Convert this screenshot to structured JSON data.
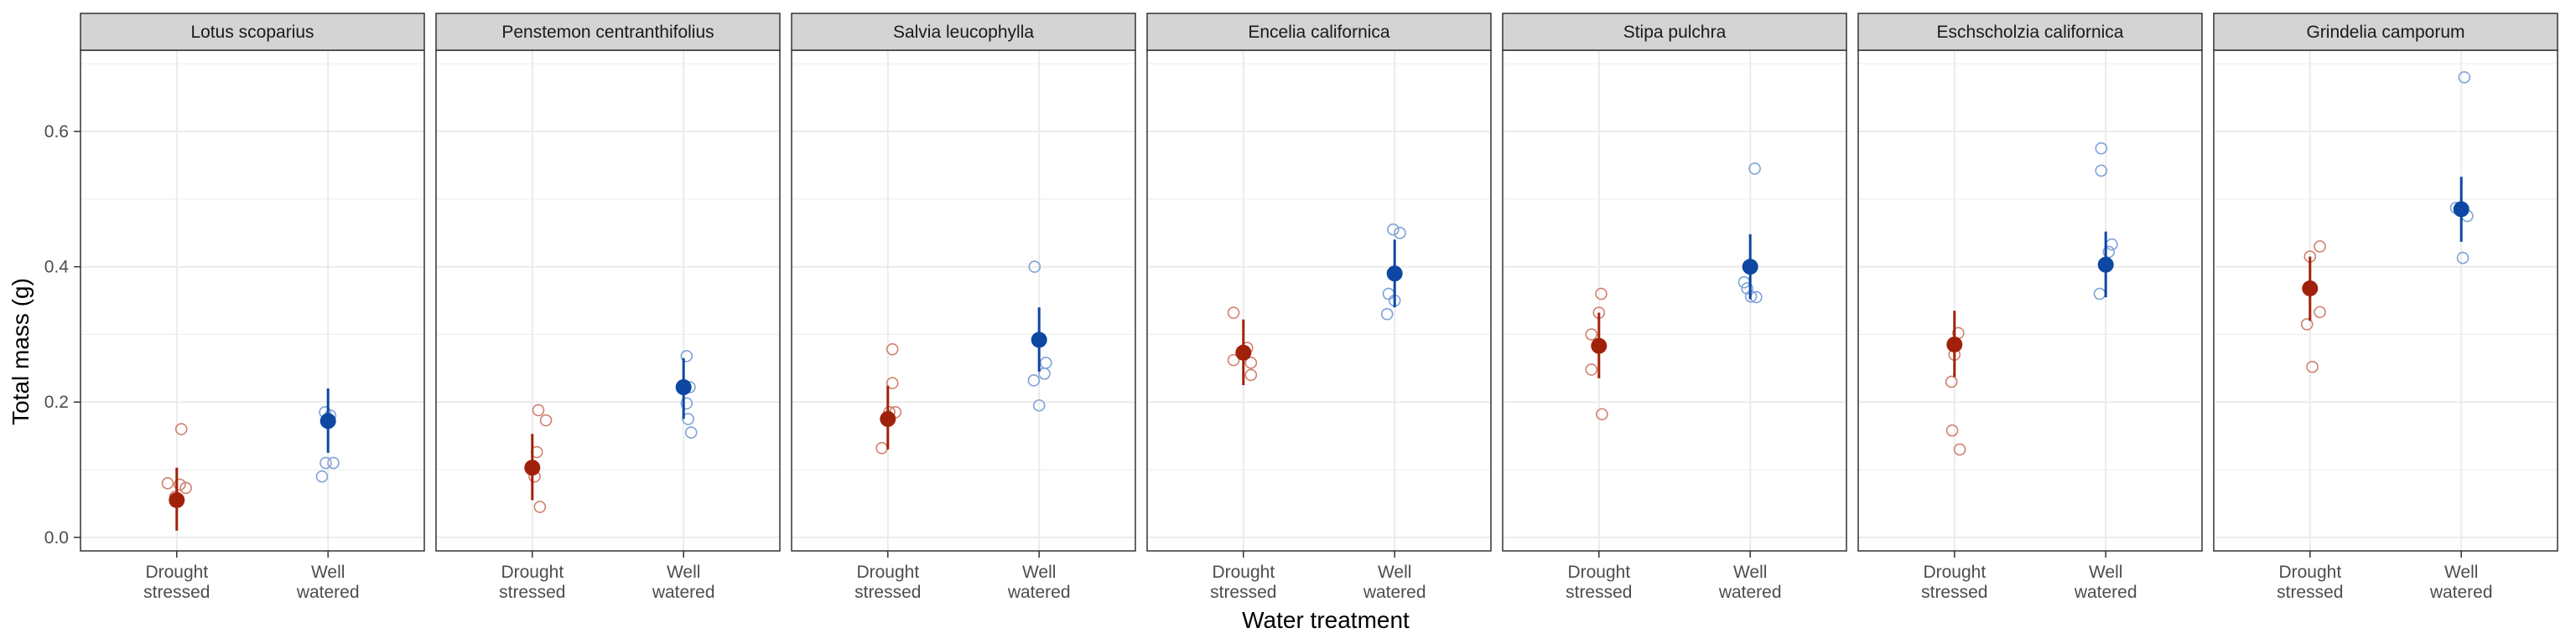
{
  "chart_data": {
    "type": "scatter",
    "xlabel": "Water treatment",
    "ylabel": "Total mass (g)",
    "ylim": [
      -0.02,
      0.72
    ],
    "yticks": [
      "0.0",
      "0.2",
      "0.4",
      "0.6"
    ],
    "ytick_values": [
      0.0,
      0.2,
      0.4,
      0.6
    ],
    "categories": [
      {
        "line1": "Drought",
        "line2": "stressed"
      },
      {
        "line1": "Well",
        "line2": "watered"
      }
    ],
    "grid": true,
    "colors": {
      "drought": "#a0210a",
      "well": "#0d47a1",
      "drought_points": "#d0806f",
      "well_points": "#7fa2d8",
      "strip_bg": "#d4d4d4",
      "grid": "#ebebeb"
    },
    "panels": [
      {
        "title": "Lotus scoparius",
        "drought": {
          "mean": 0.055,
          "low": 0.01,
          "high": 0.103,
          "points": [
            [
              -0.12,
              0.08
            ],
            [
              0.04,
              0.078
            ],
            [
              0.12,
              0.073
            ],
            [
              0.06,
              0.16
            ],
            [
              -0.02,
              0.06
            ]
          ]
        },
        "well": {
          "mean": 0.172,
          "low": 0.125,
          "high": 0.22,
          "points": [
            [
              -0.04,
              0.185
            ],
            [
              0.07,
              0.11
            ],
            [
              -0.03,
              0.11
            ],
            [
              -0.08,
              0.09
            ],
            [
              0.03,
              0.18
            ]
          ]
        }
      },
      {
        "title": "Penstemon centranthifolius",
        "drought": {
          "mean": 0.103,
          "low": 0.055,
          "high": 0.153,
          "points": [
            [
              0.08,
              0.188
            ],
            [
              0.18,
              0.173
            ],
            [
              0.06,
              0.126
            ],
            [
              0.03,
              0.09
            ],
            [
              0.1,
              0.045
            ]
          ]
        },
        "well": {
          "mean": 0.222,
          "low": 0.175,
          "high": 0.265,
          "points": [
            [
              0.04,
              0.268
            ],
            [
              0.08,
              0.222
            ],
            [
              0.04,
              0.198
            ],
            [
              0.06,
              0.175
            ],
            [
              0.1,
              0.155
            ]
          ]
        }
      },
      {
        "title": "Salvia leucophylla",
        "drought": {
          "mean": 0.175,
          "low": 0.13,
          "high": 0.224,
          "points": [
            [
              0.06,
              0.278
            ],
            [
              0.06,
              0.228
            ],
            [
              0.1,
              0.185
            ],
            [
              0.02,
              0.185
            ],
            [
              -0.08,
              0.132
            ]
          ]
        },
        "well": {
          "mean": 0.292,
          "low": 0.245,
          "high": 0.34,
          "points": [
            [
              -0.06,
              0.4
            ],
            [
              0.09,
              0.258
            ],
            [
              0.07,
              0.242
            ],
            [
              -0.07,
              0.232
            ],
            [
              0.0,
              0.195
            ]
          ]
        }
      },
      {
        "title": "Encelia californica",
        "drought": {
          "mean": 0.273,
          "low": 0.225,
          "high": 0.322,
          "points": [
            [
              -0.13,
              0.332
            ],
            [
              0.1,
              0.258
            ],
            [
              -0.13,
              0.262
            ],
            [
              0.1,
              0.24
            ],
            [
              0.05,
              0.28
            ]
          ]
        },
        "well": {
          "mean": 0.39,
          "low": 0.34,
          "high": 0.44,
          "points": [
            [
              -0.02,
              0.455
            ],
            [
              0.07,
              0.45
            ],
            [
              -0.08,
              0.36
            ],
            [
              0.0,
              0.35
            ],
            [
              -0.1,
              0.33
            ]
          ]
        }
      },
      {
        "title": "Stipa pulchra",
        "drought": {
          "mean": 0.283,
          "low": 0.235,
          "high": 0.332,
          "points": [
            [
              0.03,
              0.36
            ],
            [
              0.0,
              0.332
            ],
            [
              -0.1,
              0.3
            ],
            [
              -0.1,
              0.248
            ],
            [
              0.04,
              0.182
            ]
          ]
        },
        "well": {
          "mean": 0.4,
          "low": 0.352,
          "high": 0.448,
          "points": [
            [
              0.06,
              0.545
            ],
            [
              -0.08,
              0.377
            ],
            [
              -0.04,
              0.368
            ],
            [
              0.01,
              0.356
            ],
            [
              0.08,
              0.355
            ]
          ]
        }
      },
      {
        "title": "Eschscholzia californica",
        "drought": {
          "mean": 0.285,
          "low": 0.237,
          "high": 0.335,
          "points": [
            [
              0.05,
              0.302
            ],
            [
              -0.04,
              0.23
            ],
            [
              -0.03,
              0.158
            ],
            [
              0.07,
              0.13
            ],
            [
              0.0,
              0.27
            ]
          ]
        },
        "well": {
          "mean": 0.403,
          "low": 0.355,
          "high": 0.452,
          "points": [
            [
              -0.06,
              0.575
            ],
            [
              -0.06,
              0.542
            ],
            [
              0.08,
              0.433
            ],
            [
              0.04,
              0.422
            ],
            [
              -0.08,
              0.36
            ]
          ]
        }
      },
      {
        "title": "Grindelia camporum",
        "drought": {
          "mean": 0.368,
          "low": 0.32,
          "high": 0.415,
          "points": [
            [
              0.0,
              0.415
            ],
            [
              0.13,
              0.43
            ],
            [
              0.13,
              0.333
            ],
            [
              -0.04,
              0.315
            ],
            [
              0.03,
              0.252
            ]
          ]
        },
        "well": {
          "mean": 0.485,
          "low": 0.437,
          "high": 0.533,
          "points": [
            [
              0.04,
              0.68
            ],
            [
              -0.07,
              0.487
            ],
            [
              0.0,
              0.485
            ],
            [
              0.08,
              0.475
            ],
            [
              0.02,
              0.413
            ]
          ]
        }
      }
    ]
  }
}
